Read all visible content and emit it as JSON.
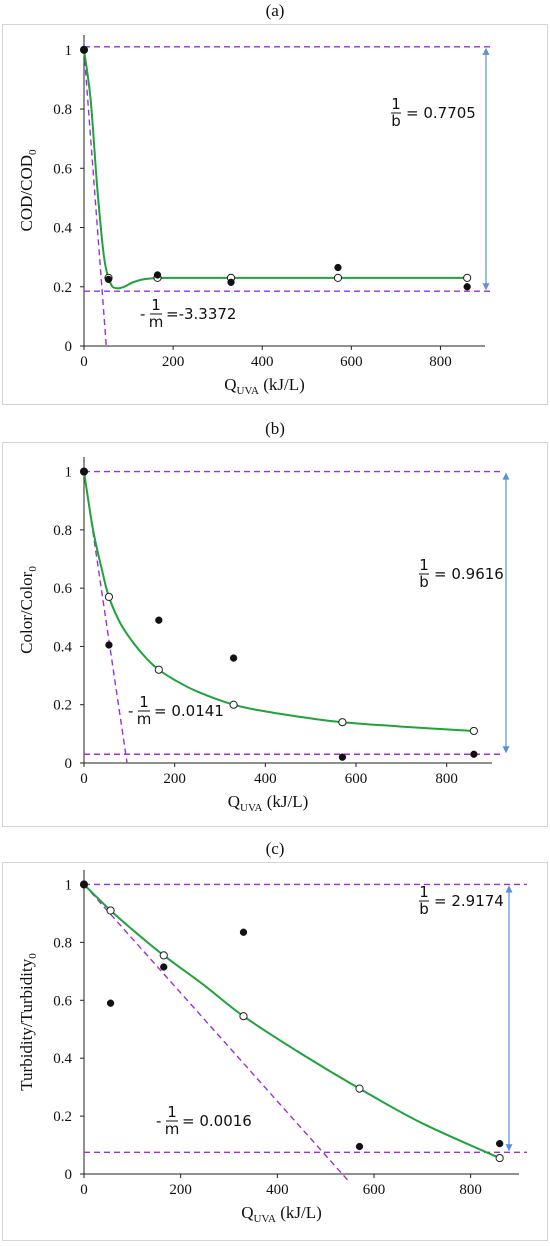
{
  "chart_data": [
    {
      "type": "scatter",
      "panel_label": "(a)",
      "xlabel": "Q",
      "xlabel_sub": "UVA",
      "xlabel_unit": " (kJ/L)",
      "ylabel": "COD/COD",
      "ylabel_sub": "0",
      "xlim": [
        0,
        900
      ],
      "ylim": [
        0,
        1.05
      ],
      "x_ticks": [
        "0",
        "200",
        "400",
        "600",
        "800"
      ],
      "y_ticks": [
        "0",
        "0.2",
        "0.4",
        "0.6",
        "0.8",
        "1"
      ],
      "series": [
        {
          "marker": "filled",
          "x": [
            0,
            55,
            165,
            330,
            570,
            860
          ],
          "y": [
            1.0,
            0.225,
            0.24,
            0.215,
            0.265,
            0.2
          ]
        },
        {
          "marker": "open",
          "x": [
            0,
            55,
            165,
            330,
            570,
            860
          ],
          "y": [
            1.0,
            0.23,
            0.23,
            0.23,
            0.23,
            0.23
          ]
        }
      ],
      "fit_curve": {
        "x": [
          0,
          15,
          30,
          45,
          60,
          75,
          90,
          110,
          130,
          160,
          200,
          300,
          500,
          700,
          860
        ],
        "y": [
          1.0,
          0.83,
          0.53,
          0.3,
          0.21,
          0.195,
          0.2,
          0.215,
          0.224,
          0.229,
          0.23,
          0.23,
          0.23,
          0.23,
          0.23
        ]
      },
      "asymptote_top": 1.01,
      "asymptote_bottom": 0.185,
      "tangent_end": {
        "x": 50,
        "y": 0
      },
      "annotation_b": {
        "num": "1",
        "den": "b",
        "value": "= 0.7705"
      },
      "annotation_m": {
        "sign": "-",
        "num": "1",
        "den": "m",
        "value": "=-3.3372"
      },
      "colors": {
        "fit": "#1fa33a",
        "dashed": "#9b30e0",
        "arrow": "#5b8fd6"
      }
    },
    {
      "type": "scatter",
      "panel_label": "(b)",
      "xlabel": "Q",
      "xlabel_sub": "UVA",
      "xlabel_unit": " (kJ/L)",
      "ylabel": "Color/Color",
      "ylabel_sub": "0",
      "xlim": [
        0,
        900
      ],
      "ylim": [
        0,
        1.05
      ],
      "x_ticks": [
        "0",
        "200",
        "400",
        "600",
        "800"
      ],
      "y_ticks": [
        "0",
        "0.2",
        "0.4",
        "0.6",
        "0.8",
        "1"
      ],
      "series": [
        {
          "marker": "filled",
          "x": [
            0,
            55,
            165,
            330,
            570,
            860
          ],
          "y": [
            1.0,
            0.405,
            0.49,
            0.36,
            0.02,
            0.03
          ]
        },
        {
          "marker": "open",
          "x": [
            0,
            55,
            165,
            330,
            570,
            860
          ],
          "y": [
            1.0,
            0.57,
            0.32,
            0.2,
            0.14,
            0.11
          ]
        }
      ],
      "fit_curve": {
        "x": [
          0,
          20,
          40,
          55,
          80,
          110,
          140,
          165,
          200,
          250,
          330,
          400,
          500,
          570,
          700,
          860
        ],
        "y": [
          1.0,
          0.8,
          0.66,
          0.57,
          0.48,
          0.41,
          0.355,
          0.32,
          0.285,
          0.245,
          0.2,
          0.177,
          0.153,
          0.14,
          0.125,
          0.11
        ]
      },
      "asymptote_top": 1.0,
      "asymptote_bottom": 0.03,
      "tangent_end": {
        "x": 95,
        "y": 0
      },
      "annotation_b": {
        "num": "1",
        "den": "b",
        "value": "= 0.9616"
      },
      "annotation_m": {
        "sign": "-",
        "num": "1",
        "den": "m",
        "value": "= 0.0141"
      },
      "colors": {
        "fit": "#1fa33a",
        "dashed": "#9b30e0",
        "arrow": "#5b8fd6"
      }
    },
    {
      "type": "scatter",
      "panel_label": "(c)",
      "xlabel": "Q",
      "xlabel_sub": "UVA",
      "xlabel_unit": " (kJ/L)",
      "ylabel": "Turbidity/Turbidity",
      "ylabel_sub": "0",
      "xlim": [
        0,
        900
      ],
      "ylim": [
        0,
        1.05
      ],
      "x_ticks": [
        "0",
        "200",
        "400",
        "600",
        "800"
      ],
      "y_ticks": [
        "0",
        "0.2",
        "0.4",
        "0.6",
        "0.8",
        "1"
      ],
      "series": [
        {
          "marker": "filled",
          "x": [
            0,
            55,
            165,
            330,
            570,
            860
          ],
          "y": [
            1.0,
            0.59,
            0.715,
            0.835,
            0.095,
            0.105
          ]
        },
        {
          "marker": "open",
          "x": [
            0,
            55,
            165,
            330,
            570,
            860
          ],
          "y": [
            1.0,
            0.91,
            0.755,
            0.545,
            0.295,
            0.055
          ]
        }
      ],
      "fit_curve": {
        "x": [
          0,
          55,
          110,
          165,
          250,
          330,
          450,
          570,
          700,
          860
        ],
        "y": [
          1.0,
          0.91,
          0.83,
          0.755,
          0.65,
          0.545,
          0.415,
          0.295,
          0.175,
          0.055
        ]
      },
      "asymptote_top": 1.0,
      "asymptote_bottom": 0.075,
      "tangent_end": {
        "x": 545,
        "y": -0.02
      },
      "annotation_b": {
        "num": "1",
        "den": "b",
        "value": "= 2.9174"
      },
      "annotation_m": {
        "sign": "-",
        "num": "1",
        "den": "m",
        "value": "= 0.0016"
      },
      "colors": {
        "fit": "#1fa33a",
        "dashed": "#9b30e0",
        "arrow": "#5b8fd6"
      }
    }
  ]
}
